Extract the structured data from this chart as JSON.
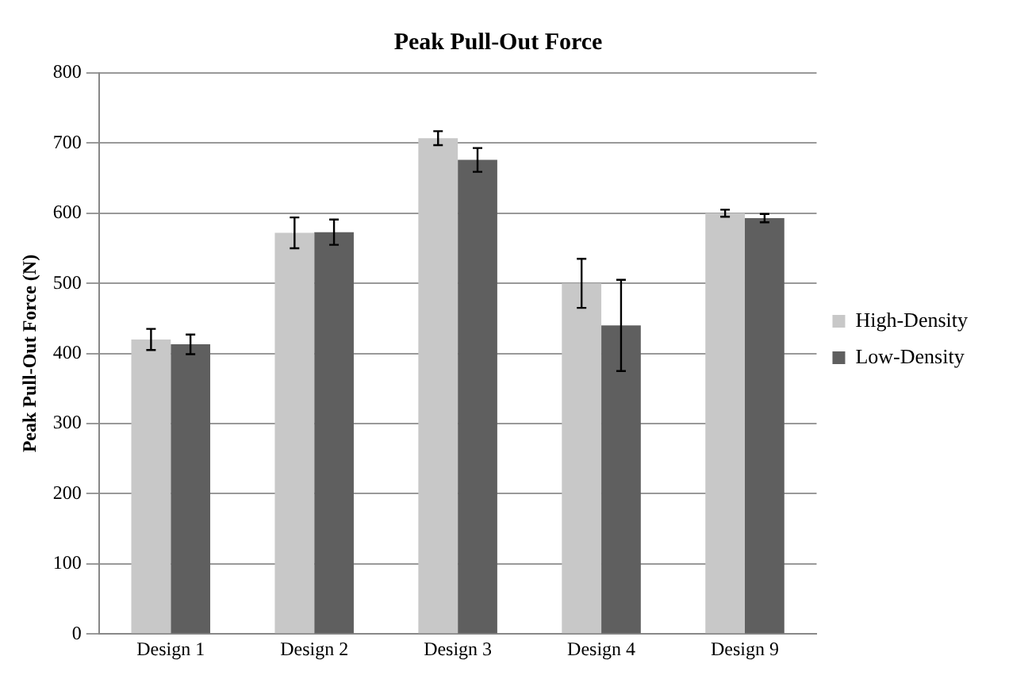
{
  "chart_data": {
    "type": "bar",
    "title": "Peak Pull-Out Force",
    "ylabel": "Peak Pull-Out Force (N)",
    "categories": [
      "Design 1",
      "Design 2",
      "Design 3",
      "Design 4",
      "Design 9"
    ],
    "series": [
      {
        "name": "High-Density",
        "color": "#c8c8c8",
        "values": [
          420,
          572,
          707,
          500,
          600
        ],
        "errors": [
          15,
          22,
          10,
          35,
          5
        ]
      },
      {
        "name": "Low-Density",
        "color": "#5f5f5f",
        "values": [
          413,
          573,
          676,
          440,
          593
        ],
        "errors": [
          14,
          18,
          17,
          65,
          6
        ]
      }
    ],
    "ylim": [
      0,
      800
    ],
    "yticks": [
      0,
      100,
      200,
      300,
      400,
      500,
      600,
      700,
      800
    ],
    "grid": "y",
    "legend": "right"
  }
}
